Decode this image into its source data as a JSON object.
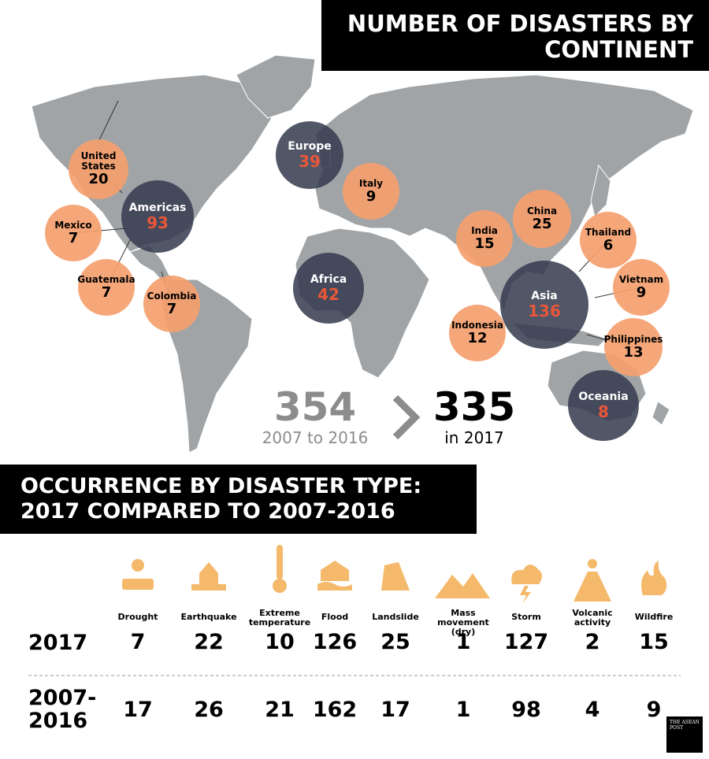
{
  "header": {
    "title": "NUMBER OF DISASTERS BY CONTINENT"
  },
  "map": {
    "bubbles": [
      {
        "label": "United States",
        "value": 20
      },
      {
        "label": "Americas",
        "value": 93
      },
      {
        "label": "Mexico",
        "value": 7
      },
      {
        "label": "Guatemala",
        "value": 7
      },
      {
        "label": "Colombia",
        "value": 7
      },
      {
        "label": "Europe",
        "value": 39
      },
      {
        "label": "Italy",
        "value": 9
      },
      {
        "label": "Africa",
        "value": 42
      },
      {
        "label": "India",
        "value": 15
      },
      {
        "label": "China",
        "value": 25
      },
      {
        "label": "Thailand",
        "value": 6
      },
      {
        "label": "Vietnam",
        "value": 9
      },
      {
        "label": "Asia",
        "value": 136
      },
      {
        "label": "Indonesia",
        "value": 12
      },
      {
        "label": "Philippines",
        "value": 13
      },
      {
        "label": "Oceania",
        "value": 8
      }
    ]
  },
  "totals": {
    "before": {
      "value": 354,
      "label": "2007 to 2016"
    },
    "after": {
      "value": 335,
      "label": "in 2017"
    }
  },
  "section": {
    "title": "OCCURRENCE BY DISASTER TYPE: 2017 COMPARED TO 2007-2016"
  },
  "table": {
    "columns": [
      "Drought",
      "Earthquake",
      "Extreme temperature",
      "Flood",
      "Landslide",
      "Mass movement (dry)",
      "Storm",
      "Volcanic activity",
      "Wildfire"
    ],
    "rows": [
      {
        "label": "2017",
        "values": [
          7,
          22,
          10,
          126,
          25,
          1,
          127,
          2,
          15
        ]
      },
      {
        "label": "2007-2016",
        "values": [
          17,
          26,
          21,
          162,
          17,
          1,
          98,
          4,
          9
        ]
      }
    ]
  },
  "logo": "THE ASEAN POST"
}
